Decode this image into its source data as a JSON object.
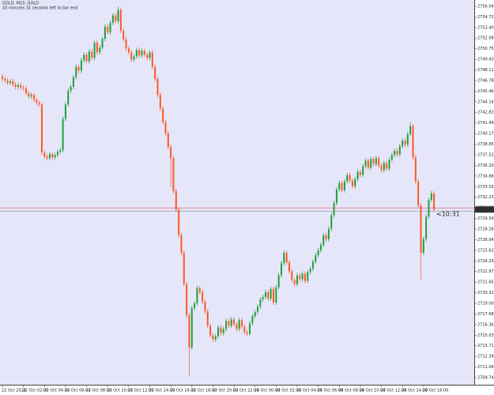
{
  "chart_data": {
    "type": "candlestick",
    "title": "GOLD, M15: GOLD",
    "subtitle": "10 minutes 31 seconds left to bar end",
    "up_color": "#1e9e3c",
    "down_color": "#ff5722",
    "background": "#e6e6fa",
    "ylim": [
      2708.85,
      2756.83
    ],
    "yticks": [
      2709.74,
      2711.06,
      2712.39,
      2713.71,
      2715.03,
      2716.36,
      2717.68,
      {
        "value": 2719.0,
        "label": "2719.00"
      },
      2720.32,
      2721.65,
      2722.97,
      2724.29,
      2725.62,
      2726.94,
      2728.26,
      2729.59,
      2730.91,
      2732.23,
      2733.55,
      2734.88,
      {
        "value": 2736.2,
        "label": "2736.20"
      },
      2737.52,
      2738.85,
      2740.17,
      2741.49,
      2742.82,
      2744.14,
      2745.46,
      2746.78,
      2748.11,
      2749.43,
      2750.75,
      2752.08,
      {
        "value": 2753.4,
        "label": "2753.40"
      },
      2754.72,
      2756.04
    ],
    "last_price": {
      "value": 2730.7,
      "label": "2730.70"
    },
    "countdown": "<10:31",
    "categories": [
      "22 Oct 2024",
      null,
      null,
      null,
      null,
      null,
      null,
      null,
      "22 Oct 02:00",
      null,
      null,
      null,
      null,
      null,
      null,
      null,
      "22 Oct 04:00",
      null,
      null,
      null,
      null,
      null,
      null,
      null,
      "22 Oct 06:00",
      null,
      null,
      null,
      null,
      null,
      null,
      null,
      "22 Oct 08:00",
      null,
      null,
      null,
      null,
      null,
      null,
      null,
      "22 Oct 10:00",
      null,
      null,
      null,
      null,
      null,
      null,
      null,
      "22 Oct 12:00",
      null,
      null,
      null,
      null,
      null,
      null,
      null,
      "22 Oct 14:00",
      null,
      null,
      null,
      null,
      null,
      null,
      null,
      "22 Oct 16:00",
      null,
      null,
      null,
      null,
      null,
      null,
      null,
      "22 Oct 18:00",
      null,
      null,
      null,
      null,
      null,
      null,
      null,
      "22 Oct 20:00",
      null,
      null,
      null,
      null,
      null,
      null,
      null,
      "22 Oct 22:00",
      null,
      null,
      null,
      null,
      null,
      null,
      null,
      "24 Oct 00:00",
      null,
      null,
      null,
      null,
      null,
      null,
      null,
      "24 Oct 02:00",
      null,
      null,
      null,
      null,
      null,
      null,
      null,
      "24 Oct 04:00",
      null,
      null,
      null,
      null,
      null,
      null,
      null,
      "24 Oct 06:00",
      null,
      null,
      null,
      null,
      null,
      null,
      null,
      "24 Oct 08:00",
      null,
      null,
      null,
      null,
      null,
      null,
      null,
      "24 Oct 10:00",
      null,
      null,
      null,
      null,
      null,
      null,
      null,
      "24 Oct 12:00",
      null,
      null,
      null,
      null,
      null,
      null,
      null,
      "24 Oct 14:00",
      null,
      null,
      null,
      null,
      null,
      null,
      null,
      "24 Oct 16:00",
      null,
      null,
      null,
      null
    ],
    "open": [
      2747.3,
      2747.0,
      2746.8,
      2746.5,
      2746.7,
      2746.3,
      2746.0,
      2746.2,
      2745.9,
      2745.8,
      2745.2,
      2744.8,
      2745.0,
      2744.4,
      2744.0,
      2743.8,
      2737.8,
      2737.3,
      2737.1,
      2737.6,
      2737.2,
      2737.5,
      2737.9,
      2738.1,
      2742.0,
      2743.8,
      2745.5,
      2746.0,
      2747.2,
      2748.5,
      2748.0,
      2749.3,
      2750.0,
      2749.2,
      2750.4,
      2749.6,
      2751.5,
      2750.3,
      2750.9,
      2752.0,
      2753.5,
      2752.8,
      2754.0,
      2754.9,
      2754.2,
      2755.6,
      2753.0,
      2751.9,
      2750.8,
      2750.3,
      2749.4,
      2749.8,
      2750.6,
      2749.9,
      2750.5,
      2750.0,
      2749.6,
      2750.3,
      2748.5,
      2747.0,
      2745.0,
      2743.3,
      2741.6,
      2740.2,
      2738.5,
      2737.1,
      2733.0,
      2730.7,
      2727.5,
      2725.3,
      2721.4,
      2717.5,
      2713.5,
      2718.4,
      2719.0,
      2720.9,
      2720.4,
      2719.2,
      2718.0,
      2716.2,
      2715.0,
      2714.5,
      2714.9,
      2716.0,
      2715.3,
      2715.8,
      2716.8,
      2716.2,
      2717.0,
      2716.4,
      2715.8,
      2716.9,
      2716.1,
      2715.4,
      2715.2,
      2716.5,
      2717.4,
      2717.9,
      2718.6,
      2719.5,
      2719.8,
      2720.4,
      2719.6,
      2720.8,
      2719.1,
      2721.0,
      2722.5,
      2724.0,
      2725.3,
      2724.1,
      2723.0,
      2721.9,
      2721.4,
      2722.5,
      2722.0,
      2722.7,
      2721.8,
      2722.9,
      2723.3,
      2724.2,
      2725.0,
      2725.6,
      2726.3,
      2727.5,
      2727.0,
      2728.3,
      2730.0,
      2731.5,
      2733.2,
      2734.0,
      2733.1,
      2734.2,
      2735.0,
      2734.3,
      2733.6,
      2734.5,
      2735.4,
      2735.0,
      2736.1,
      2736.8,
      2735.9,
      2737.0,
      2736.4,
      2737.1,
      2736.2,
      2735.6,
      2736.5,
      2735.8,
      2736.9,
      2737.5,
      2738.0,
      2737.6,
      2738.6,
      2739.3,
      2738.8,
      2740.1,
      2741.1,
      2737.2,
      2734.2,
      2731.2,
      2725.3,
      2727.0,
      2729.8,
      2731.9,
      2732.7
    ],
    "high": [
      2747.6,
      2747.3,
      2747.1,
      2747.0,
      2747.0,
      2746.6,
      2746.5,
      2746.5,
      2746.2,
      2746.1,
      2745.5,
      2745.3,
      2745.3,
      2744.7,
      2744.3,
      2744.1,
      2738.1,
      2737.6,
      2737.9,
      2737.9,
      2737.8,
      2738.2,
      2738.4,
      2742.3,
      2744.1,
      2745.8,
      2746.3,
      2747.5,
      2748.8,
      2748.8,
      2749.6,
      2750.3,
      2750.3,
      2750.7,
      2750.7,
      2751.8,
      2751.8,
      2751.2,
      2752.3,
      2753.8,
      2753.8,
      2754.3,
      2755.2,
      2755.2,
      2756.0,
      2755.9,
      2753.3,
      2752.2,
      2751.1,
      2750.6,
      2750.1,
      2750.9,
      2750.9,
      2750.8,
      2750.8,
      2750.3,
      2750.6,
      2750.6,
      2748.8,
      2747.3,
      2745.3,
      2743.6,
      2741.9,
      2740.5,
      2738.8,
      2737.4,
      2733.3,
      2731.0,
      2727.8,
      2725.6,
      2721.7,
      2717.8,
      2718.7,
      2719.3,
      2721.2,
      2721.2,
      2720.7,
      2719.5,
      2718.3,
      2716.5,
      2715.3,
      2715.2,
      2716.3,
      2716.3,
      2716.1,
      2717.1,
      2717.1,
      2717.3,
      2717.3,
      2716.7,
      2717.2,
      2717.2,
      2716.4,
      2715.7,
      2716.8,
      2717.7,
      2718.2,
      2718.9,
      2719.8,
      2720.1,
      2720.7,
      2720.7,
      2721.1,
      2721.1,
      2721.3,
      2722.8,
      2724.3,
      2725.6,
      2725.6,
      2724.4,
      2723.3,
      2722.2,
      2722.8,
      2722.8,
      2723.0,
      2723.0,
      2723.2,
      2723.6,
      2724.5,
      2725.3,
      2725.9,
      2726.6,
      2727.8,
      2727.8,
      2728.6,
      2730.3,
      2731.8,
      2733.5,
      2734.3,
      2734.3,
      2734.5,
      2735.3,
      2735.3,
      2734.6,
      2734.8,
      2735.7,
      2735.7,
      2736.4,
      2737.1,
      2737.1,
      2737.3,
      2737.3,
      2737.4,
      2737.4,
      2736.5,
      2736.8,
      2736.8,
      2737.2,
      2737.8,
      2738.3,
      2738.3,
      2738.9,
      2739.6,
      2739.6,
      2740.4,
      2741.6,
      2741.4,
      2737.5,
      2734.5,
      2731.5,
      2727.3,
      2730.1,
      2732.2,
      2733.0,
      2733.0
    ],
    "low": [
      2746.7,
      2746.5,
      2746.2,
      2746.2,
      2746.0,
      2745.7,
      2745.7,
      2745.6,
      2745.5,
      2744.9,
      2744.5,
      2744.5,
      2744.1,
      2743.7,
      2743.5,
      2737.5,
      2737.0,
      2736.8,
      2736.8,
      2736.9,
      2736.9,
      2737.2,
      2737.6,
      2737.8,
      2741.7,
      2743.5,
      2745.2,
      2745.7,
      2746.9,
      2747.7,
      2747.7,
      2749.0,
      2748.9,
      2748.9,
      2749.3,
      2749.3,
      2750.0,
      2750.0,
      2750.6,
      2751.7,
      2752.5,
      2752.5,
      2753.7,
      2753.9,
      2753.9,
      2752.7,
      2751.6,
      2750.5,
      2750.0,
      2749.1,
      2749.1,
      2749.5,
      2749.6,
      2749.6,
      2749.7,
      2749.3,
      2749.3,
      2748.2,
      2746.7,
      2744.7,
      2743.0,
      2741.3,
      2739.9,
      2738.2,
      2733.5,
      2732.7,
      2730.4,
      2727.2,
      2725.0,
      2721.1,
      2717.2,
      2710.0,
      2713.2,
      2718.1,
      2718.7,
      2720.1,
      2718.9,
      2717.7,
      2715.9,
      2714.7,
      2714.2,
      2714.2,
      2714.6,
      2715.0,
      2715.0,
      2715.5,
      2715.9,
      2715.9,
      2716.1,
      2715.5,
      2715.5,
      2715.8,
      2715.1,
      2714.9,
      2714.9,
      2716.2,
      2717.1,
      2717.6,
      2718.3,
      2719.2,
      2719.5,
      2719.3,
      2719.3,
      2718.8,
      2718.8,
      2720.7,
      2722.2,
      2723.7,
      2723.8,
      2722.7,
      2721.6,
      2721.1,
      2721.1,
      2721.7,
      2721.7,
      2721.5,
      2721.5,
      2722.6,
      2723.0,
      2723.9,
      2724.7,
      2725.3,
      2726.0,
      2726.7,
      2726.7,
      2728.0,
      2729.7,
      2731.2,
      2732.9,
      2732.8,
      2732.8,
      2733.9,
      2734.0,
      2733.3,
      2733.3,
      2734.2,
      2734.7,
      2734.7,
      2735.8,
      2735.6,
      2735.6,
      2736.1,
      2736.1,
      2735.9,
      2735.3,
      2735.3,
      2735.5,
      2735.5,
      2736.6,
      2737.2,
      2737.3,
      2737.3,
      2738.3,
      2738.5,
      2738.5,
      2739.8,
      2736.9,
      2733.9,
      2730.9,
      2722.0,
      2725.0,
      2726.7,
      2729.5,
      2731.6,
      2730.4
    ],
    "close": [
      2747.0,
      2746.8,
      2746.5,
      2746.7,
      2746.3,
      2746.0,
      2746.2,
      2745.9,
      2745.8,
      2745.2,
      2744.8,
      2745.0,
      2744.4,
      2744.0,
      2743.8,
      2737.8,
      2737.3,
      2737.1,
      2737.6,
      2737.2,
      2737.5,
      2737.9,
      2738.1,
      2742.0,
      2743.8,
      2745.5,
      2746.0,
      2747.2,
      2748.5,
      2748.0,
      2749.3,
      2750.0,
      2749.2,
      2750.4,
      2749.6,
      2751.5,
      2750.3,
      2750.9,
      2752.0,
      2753.5,
      2752.8,
      2754.0,
      2754.9,
      2754.2,
      2755.6,
      2753.0,
      2751.9,
      2750.8,
      2750.3,
      2749.4,
      2749.8,
      2750.6,
      2749.9,
      2750.5,
      2750.0,
      2749.6,
      2750.3,
      2748.5,
      2747.0,
      2745.0,
      2743.3,
      2741.6,
      2740.2,
      2738.5,
      2737.1,
      2733.0,
      2730.7,
      2727.5,
      2725.3,
      2721.4,
      2717.5,
      2713.5,
      2718.4,
      2719.0,
      2720.9,
      2720.4,
      2719.2,
      2718.0,
      2716.2,
      2715.0,
      2714.5,
      2714.9,
      2716.0,
      2715.3,
      2715.8,
      2716.8,
      2716.2,
      2717.0,
      2716.4,
      2715.8,
      2716.9,
      2716.1,
      2715.4,
      2715.2,
      2716.5,
      2717.4,
      2717.9,
      2718.6,
      2719.5,
      2719.8,
      2720.4,
      2719.6,
      2720.8,
      2719.1,
      2721.0,
      2722.5,
      2724.0,
      2725.3,
      2724.1,
      2723.0,
      2721.9,
      2721.4,
      2722.5,
      2722.0,
      2722.7,
      2721.8,
      2722.9,
      2723.3,
      2724.2,
      2725.0,
      2725.6,
      2726.3,
      2727.5,
      2727.0,
      2728.3,
      2730.0,
      2731.5,
      2733.2,
      2734.0,
      2733.1,
      2734.2,
      2735.0,
      2734.3,
      2733.6,
      2734.5,
      2735.4,
      2735.0,
      2736.1,
      2736.8,
      2735.9,
      2737.0,
      2736.4,
      2737.1,
      2736.2,
      2735.6,
      2736.5,
      2735.8,
      2736.9,
      2737.5,
      2738.0,
      2737.6,
      2738.6,
      2739.3,
      2738.8,
      2740.1,
      2741.1,
      2737.2,
      2734.2,
      2731.2,
      2725.3,
      2727.0,
      2729.8,
      2731.9,
      2732.7,
      2730.7
    ]
  }
}
